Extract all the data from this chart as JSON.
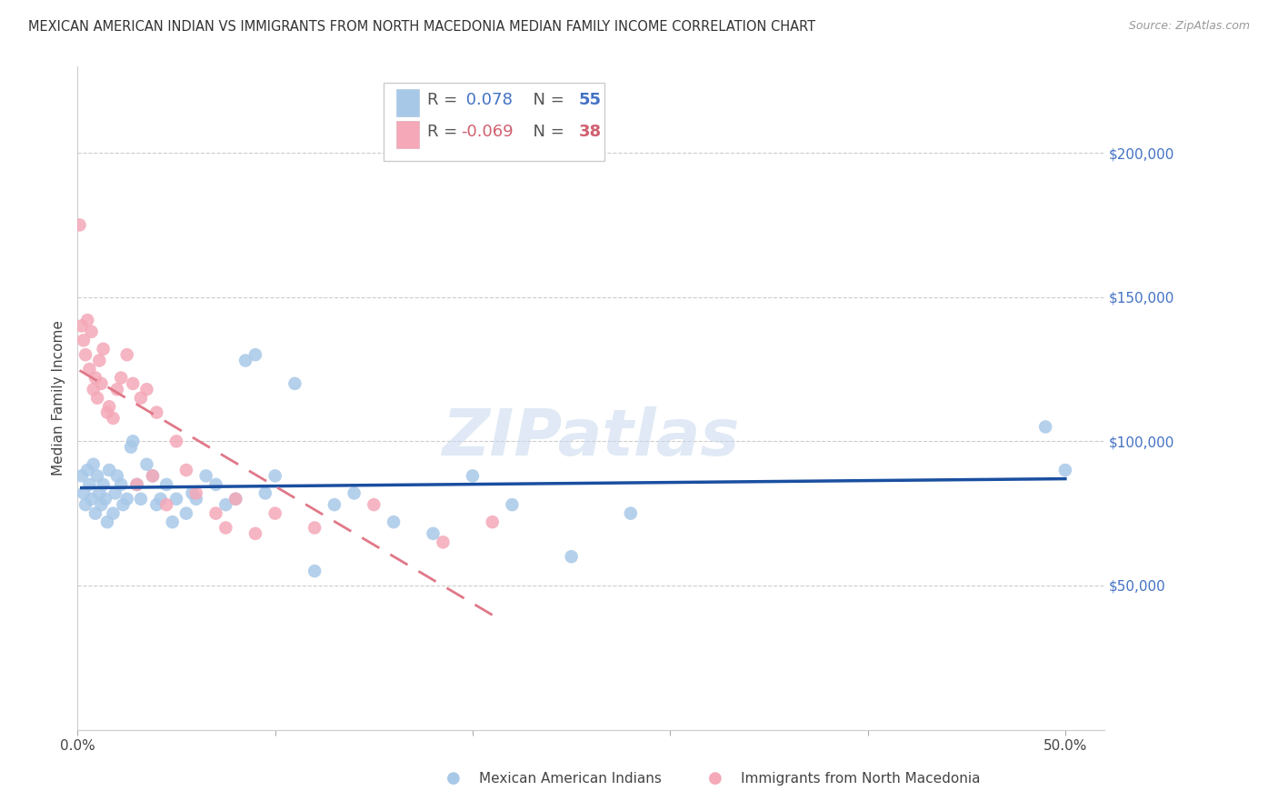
{
  "title": "MEXICAN AMERICAN INDIAN VS IMMIGRANTS FROM NORTH MACEDONIA MEDIAN FAMILY INCOME CORRELATION CHART",
  "source": "Source: ZipAtlas.com",
  "ylabel": "Median Family Income",
  "y_ticks": [
    0,
    50000,
    100000,
    150000,
    200000
  ],
  "y_tick_labels": [
    "",
    "$50,000",
    "$100,000",
    "$150,000",
    "$200,000"
  ],
  "xlim": [
    0.0,
    0.52
  ],
  "ylim": [
    0,
    230000
  ],
  "legend_blue_r": "0.078",
  "legend_blue_n": "55",
  "legend_pink_r": "-0.069",
  "legend_pink_n": "38",
  "legend_label_blue": "Mexican American Indians",
  "legend_label_pink": "Immigrants from North Macedonia",
  "blue_color": "#a8c8e8",
  "pink_color": "#f4a8b8",
  "blue_line_color": "#1a4fa0",
  "pink_line_color": "#e07888",
  "watermark": "ZIPatlas",
  "blue_x": [
    0.002,
    0.003,
    0.004,
    0.005,
    0.006,
    0.007,
    0.008,
    0.009,
    0.01,
    0.011,
    0.012,
    0.013,
    0.014,
    0.015,
    0.016,
    0.018,
    0.019,
    0.02,
    0.022,
    0.023,
    0.025,
    0.027,
    0.028,
    0.03,
    0.032,
    0.035,
    0.038,
    0.04,
    0.042,
    0.045,
    0.048,
    0.05,
    0.055,
    0.058,
    0.06,
    0.065,
    0.07,
    0.075,
    0.08,
    0.085,
    0.09,
    0.095,
    0.1,
    0.11,
    0.12,
    0.13,
    0.14,
    0.16,
    0.18,
    0.2,
    0.22,
    0.25,
    0.28,
    0.49,
    0.5
  ],
  "blue_y": [
    88000,
    82000,
    78000,
    90000,
    85000,
    80000,
    92000,
    75000,
    88000,
    82000,
    78000,
    85000,
    80000,
    72000,
    90000,
    75000,
    82000,
    88000,
    85000,
    78000,
    80000,
    98000,
    100000,
    85000,
    80000,
    92000,
    88000,
    78000,
    80000,
    85000,
    72000,
    80000,
    75000,
    82000,
    80000,
    88000,
    85000,
    78000,
    80000,
    128000,
    130000,
    82000,
    88000,
    120000,
    55000,
    78000,
    82000,
    72000,
    68000,
    88000,
    78000,
    60000,
    75000,
    105000,
    90000
  ],
  "pink_x": [
    0.001,
    0.002,
    0.003,
    0.004,
    0.005,
    0.006,
    0.007,
    0.008,
    0.009,
    0.01,
    0.011,
    0.012,
    0.013,
    0.015,
    0.016,
    0.018,
    0.02,
    0.022,
    0.025,
    0.028,
    0.03,
    0.032,
    0.035,
    0.038,
    0.04,
    0.045,
    0.05,
    0.055,
    0.06,
    0.07,
    0.075,
    0.08,
    0.09,
    0.1,
    0.12,
    0.15,
    0.185,
    0.21
  ],
  "pink_y": [
    175000,
    140000,
    135000,
    130000,
    142000,
    125000,
    138000,
    118000,
    122000,
    115000,
    128000,
    120000,
    132000,
    110000,
    112000,
    108000,
    118000,
    122000,
    130000,
    120000,
    85000,
    115000,
    118000,
    88000,
    110000,
    78000,
    100000,
    90000,
    82000,
    75000,
    70000,
    80000,
    68000,
    75000,
    70000,
    78000,
    65000,
    72000
  ]
}
